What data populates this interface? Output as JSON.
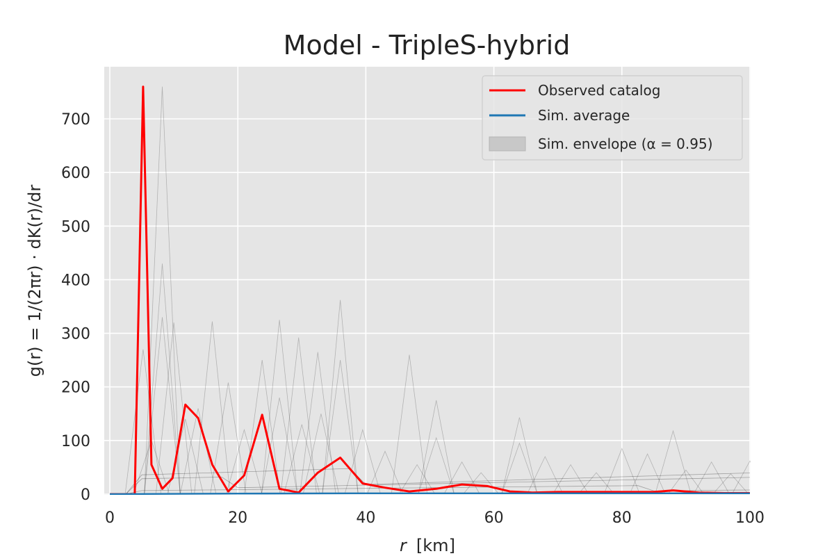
{
  "chart_data": {
    "type": "line",
    "title": "Model - TripleS-hybrid",
    "xlabel_var": "r",
    "xlabel_unit": "[km]",
    "ylabel": "g(r) = 1/(2πr) · dK(r)/dr",
    "xlim": [
      0,
      100
    ],
    "ylim": [
      0,
      790
    ],
    "xticks": [
      "0",
      "20",
      "40",
      "60",
      "80",
      "100"
    ],
    "yticks": [
      "0",
      "100",
      "200",
      "300",
      "400",
      "500",
      "600",
      "700"
    ],
    "grid": true,
    "legend_position": "top-right",
    "background": "#e5e5e5",
    "colors": {
      "observed": "#ff0000",
      "average": "#1f77b4",
      "simulations": "#000000"
    },
    "legend": [
      {
        "label": "Observed catalog",
        "kind": "line",
        "color": "#ff0000"
      },
      {
        "label": "Sim. average",
        "kind": "line",
        "color": "#1f77b4"
      },
      {
        "label": "Sim. envelope (α = 0.95)",
        "kind": "patch",
        "color": "#c8c8c8"
      }
    ],
    "series": [
      {
        "name": "Observed catalog",
        "x": [
          0,
          1.3,
          2.6,
          3.9,
          5.2,
          6.5,
          8.2,
          9.8,
          11.8,
          13.8,
          16,
          18.5,
          21,
          23.8,
          26.5,
          29.5,
          32.5,
          36,
          39.5,
          43,
          46.8,
          51,
          55,
          59,
          62.5,
          66,
          70,
          75,
          80,
          85,
          88,
          92,
          96,
          100
        ],
        "y": [
          0,
          0,
          0,
          0,
          760,
          55,
          10,
          30,
          167,
          142,
          55,
          5,
          35,
          148,
          10,
          3,
          40,
          68,
          20,
          12,
          5,
          10,
          18,
          15,
          5,
          3,
          4,
          4,
          4,
          4,
          7,
          3,
          2,
          2
        ]
      },
      {
        "name": "Sim. average",
        "x": [
          0,
          20,
          40,
          60,
          80,
          100
        ],
        "y": [
          0,
          1,
          1.5,
          1.5,
          1.5,
          1.5
        ]
      }
    ],
    "simulation_peaks": [
      {
        "x": 8.2,
        "y": 760
      },
      {
        "x": 8.2,
        "y": 430
      },
      {
        "x": 8.2,
        "y": 330
      },
      {
        "x": 10,
        "y": 320
      },
      {
        "x": 5.2,
        "y": 270
      },
      {
        "x": 16,
        "y": 322
      },
      {
        "x": 23.8,
        "y": 250
      },
      {
        "x": 26.5,
        "y": 325
      },
      {
        "x": 29.5,
        "y": 292
      },
      {
        "x": 32.5,
        "y": 265
      },
      {
        "x": 36,
        "y": 362
      },
      {
        "x": 36,
        "y": 250
      },
      {
        "x": 46.8,
        "y": 260
      },
      {
        "x": 51,
        "y": 175
      },
      {
        "x": 51,
        "y": 105
      },
      {
        "x": 18.5,
        "y": 208
      },
      {
        "x": 64,
        "y": 143
      },
      {
        "x": 64,
        "y": 95
      },
      {
        "x": 88,
        "y": 118
      },
      {
        "x": 80,
        "y": 85
      },
      {
        "x": 68,
        "y": 70
      },
      {
        "x": 100,
        "y": 62
      },
      {
        "x": 13.8,
        "y": 160
      },
      {
        "x": 39.5,
        "y": 120
      },
      {
        "x": 43,
        "y": 80
      },
      {
        "x": 55,
        "y": 60
      },
      {
        "x": 84,
        "y": 75
      },
      {
        "x": 94,
        "y": 60
      },
      {
        "x": 72,
        "y": 55
      },
      {
        "x": 58,
        "y": 40
      },
      {
        "x": 21,
        "y": 120
      },
      {
        "x": 11.8,
        "y": 140
      },
      {
        "x": 26.5,
        "y": 180
      },
      {
        "x": 33,
        "y": 150
      },
      {
        "x": 6.5,
        "y": 100
      },
      {
        "x": 30,
        "y": 130
      },
      {
        "x": 48,
        "y": 55
      },
      {
        "x": 76,
        "y": 40
      },
      {
        "x": 90,
        "y": 45
      },
      {
        "x": 97,
        "y": 38
      }
    ]
  }
}
